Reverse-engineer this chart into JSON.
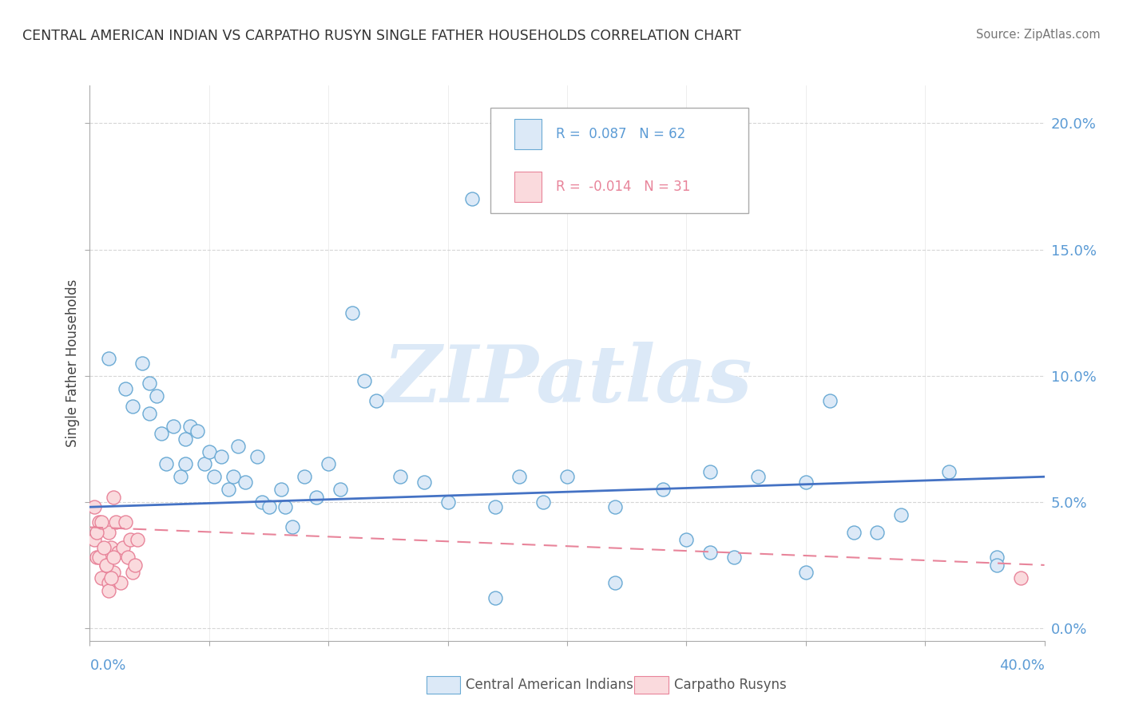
{
  "title": "CENTRAL AMERICAN INDIAN VS CARPATHO RUSYN SINGLE FATHER HOUSEHOLDS CORRELATION CHART",
  "source": "Source: ZipAtlas.com",
  "ylabel": "Single Father Households",
  "legend1_R": "0.087",
  "legend1_N": "62",
  "legend2_R": "-0.014",
  "legend2_N": "31",
  "blue_fill": "#dce9f7",
  "blue_edge": "#6aaad4",
  "pink_fill": "#fadadd",
  "pink_edge": "#e8849a",
  "line_blue_color": "#4472c4",
  "line_pink_color": "#e8849a",
  "watermark_color": "#dce9f7",
  "xlim": [
    0.0,
    0.4
  ],
  "ylim": [
    -0.005,
    0.215
  ],
  "yticks": [
    0.0,
    0.05,
    0.1,
    0.15,
    0.2
  ],
  "ytick_labels": [
    "0.0%",
    "5.0%",
    "10.0%",
    "15.0%",
    "20.0%"
  ],
  "xticks": [
    0.0,
    0.05,
    0.1,
    0.15,
    0.2,
    0.25,
    0.3,
    0.35,
    0.4
  ],
  "blue_scatter_x": [
    0.008,
    0.015,
    0.018,
    0.022,
    0.025,
    0.025,
    0.028,
    0.03,
    0.032,
    0.035,
    0.038,
    0.04,
    0.04,
    0.042,
    0.045,
    0.048,
    0.05,
    0.052,
    0.055,
    0.058,
    0.06,
    0.062,
    0.065,
    0.07,
    0.072,
    0.075,
    0.08,
    0.082,
    0.085,
    0.09,
    0.095,
    0.1,
    0.105,
    0.11,
    0.115,
    0.12,
    0.13,
    0.14,
    0.15,
    0.16,
    0.17,
    0.18,
    0.19,
    0.2,
    0.22,
    0.24,
    0.26,
    0.28,
    0.3,
    0.32,
    0.34,
    0.36,
    0.38,
    0.31,
    0.38,
    0.25,
    0.27,
    0.3,
    0.26,
    0.22,
    0.17,
    0.33
  ],
  "blue_scatter_y": [
    0.107,
    0.095,
    0.088,
    0.105,
    0.097,
    0.085,
    0.092,
    0.077,
    0.065,
    0.08,
    0.06,
    0.075,
    0.065,
    0.08,
    0.078,
    0.065,
    0.07,
    0.06,
    0.068,
    0.055,
    0.06,
    0.072,
    0.058,
    0.068,
    0.05,
    0.048,
    0.055,
    0.048,
    0.04,
    0.06,
    0.052,
    0.065,
    0.055,
    0.125,
    0.098,
    0.09,
    0.06,
    0.058,
    0.05,
    0.17,
    0.048,
    0.06,
    0.05,
    0.06,
    0.048,
    0.055,
    0.062,
    0.06,
    0.058,
    0.038,
    0.045,
    0.062,
    0.028,
    0.09,
    0.025,
    0.035,
    0.028,
    0.022,
    0.03,
    0.018,
    0.012,
    0.038
  ],
  "pink_scatter_x": [
    0.002,
    0.003,
    0.004,
    0.005,
    0.006,
    0.007,
    0.008,
    0.008,
    0.009,
    0.01,
    0.01,
    0.011,
    0.012,
    0.013,
    0.014,
    0.015,
    0.016,
    0.017,
    0.018,
    0.019,
    0.02,
    0.002,
    0.003,
    0.004,
    0.005,
    0.006,
    0.007,
    0.008,
    0.009,
    0.01,
    0.39
  ],
  "pink_scatter_y": [
    0.035,
    0.028,
    0.042,
    0.02,
    0.03,
    0.025,
    0.038,
    0.018,
    0.032,
    0.052,
    0.022,
    0.042,
    0.03,
    0.018,
    0.032,
    0.042,
    0.028,
    0.035,
    0.022,
    0.025,
    0.035,
    0.048,
    0.038,
    0.028,
    0.042,
    0.032,
    0.025,
    0.015,
    0.02,
    0.028,
    0.02
  ],
  "blue_line_x": [
    0.0,
    0.4
  ],
  "blue_line_y": [
    0.048,
    0.06
  ],
  "pink_line_x": [
    0.0,
    0.4
  ],
  "pink_line_y": [
    0.04,
    0.025
  ]
}
